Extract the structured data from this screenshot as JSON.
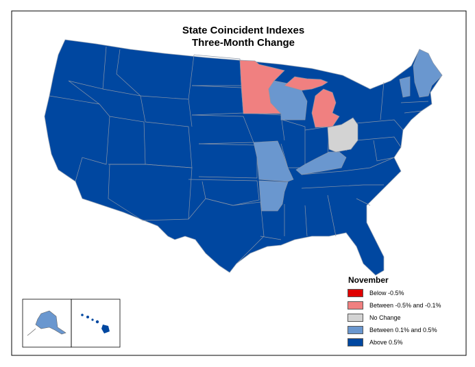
{
  "title_line1": "State Coincident Indexes",
  "title_line2": "Three-Month Change",
  "legend": {
    "title": "November",
    "items": [
      {
        "label": "Below -0.5%",
        "color": "#e00000"
      },
      {
        "label": "Between -0.5% and -0.1%",
        "color": "#f08080"
      },
      {
        "label": "No Change",
        "color": "#d3d3d3"
      },
      {
        "label": "Between 0.1% and 0.5%",
        "color": "#6a97cf"
      },
      {
        "label": "Above 0.5%",
        "color": "#0047a0"
      }
    ]
  },
  "state_categories": {
    "minnesota": "Between -0.5% and -0.1%",
    "michigan": "Between -0.5% and -0.1%",
    "ohio": "No Change",
    "wisconsin": "Between 0.1% and 0.5%",
    "missouri": "Between 0.1% and 0.5%",
    "arkansas": "Between 0.1% and 0.5%",
    "kentucky": "Between 0.1% and 0.5%",
    "maine": "Between 0.1% and 0.5%",
    "vermont": "Between 0.1% and 0.5%",
    "alaska": "Between 0.1% and 0.5%",
    "hawaii": "Above 0.5%",
    "all_other_states": "Above 0.5%"
  }
}
